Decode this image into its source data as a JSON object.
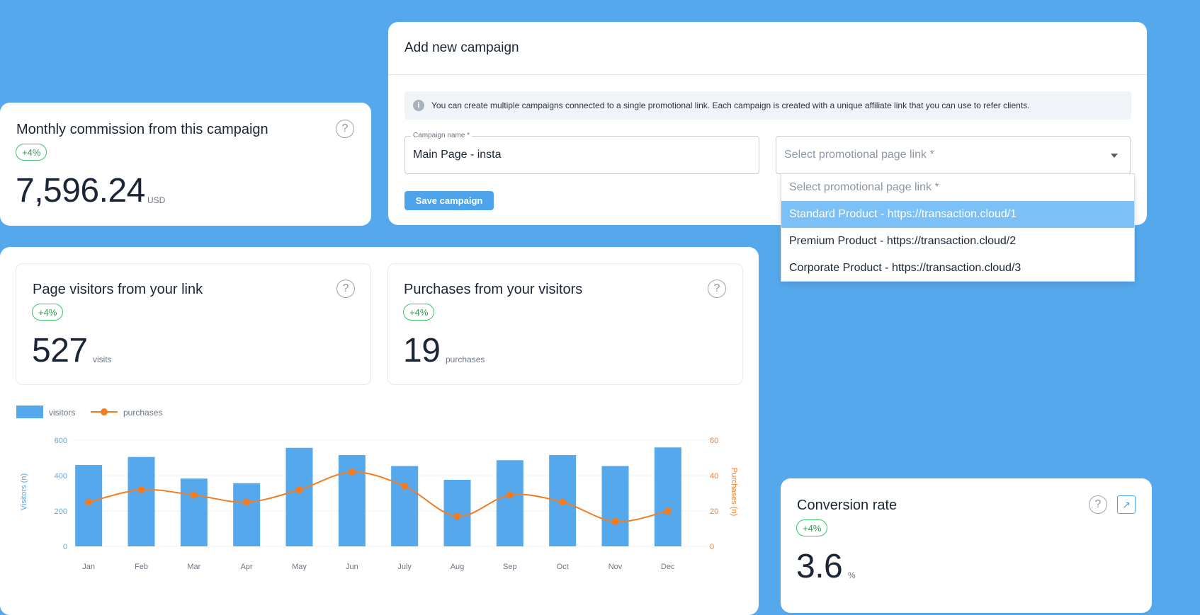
{
  "commission": {
    "title": "Monthly commission from this campaign",
    "badge": "+4%",
    "value": "7,596.24",
    "unit": "USD",
    "help": "?"
  },
  "campaign_form": {
    "title": "Add new campaign",
    "info_text": "You can create multiple campaigns connected to a single promotional link. Each campaign is created with a unique affiliate link that you can use to refer clients.",
    "name_label": "Campaign name *",
    "name_value": "Main Page - insta",
    "select_placeholder": "Select promotional page link *",
    "save_label": "Save campaign",
    "dropdown_options": [
      "Select promotional page link *",
      "Standard Product - https://transaction.cloud/1",
      "Premium Product - https://transaction.cloud/2",
      "Corporate Product - https://transaction.cloud/3"
    ],
    "selected_index": 1
  },
  "visitors": {
    "title": "Page visitors from your link",
    "badge": "+4%",
    "value": "527",
    "unit": "visits",
    "help": "?"
  },
  "purchases": {
    "title": "Purchases from your visitors",
    "badge": "+4%",
    "value": "19",
    "unit": "purchases",
    "help": "?"
  },
  "conversion": {
    "title": "Conversion rate",
    "badge": "+4%",
    "value": "3.6",
    "unit": "%",
    "help": "?",
    "arrow": "↗"
  },
  "colors": {
    "background": "#56a8ec",
    "bar": "#56a8ec",
    "line": "#f47c20",
    "badge_green": "#3fbf6b"
  },
  "chart_data": {
    "type": "bar",
    "categories": [
      "Jan",
      "Feb",
      "Mar",
      "Apr",
      "May",
      "Jun",
      "July",
      "Aug",
      "Sep",
      "Oct",
      "Nov",
      "Dec"
    ],
    "series": [
      {
        "name": "visitors",
        "type": "bar",
        "axis": "left",
        "values": [
          460,
          505,
          383,
          357,
          557,
          516,
          454,
          376,
          487,
          516,
          454,
          559
        ]
      },
      {
        "name": "purchases",
        "type": "line",
        "axis": "right",
        "values": [
          25,
          32,
          29,
          25,
          32,
          42,
          34,
          17,
          29,
          25,
          14,
          20
        ]
      }
    ],
    "ylabel": "Visitors (n)",
    "y2label": "Purchases (n)",
    "ylim": [
      0,
      600
    ],
    "y2lim": [
      0,
      60
    ],
    "yticks": [
      0,
      200,
      400,
      600
    ],
    "y2ticks": [
      0,
      20,
      40,
      60
    ],
    "legend_position": "top-left",
    "grid": true
  }
}
